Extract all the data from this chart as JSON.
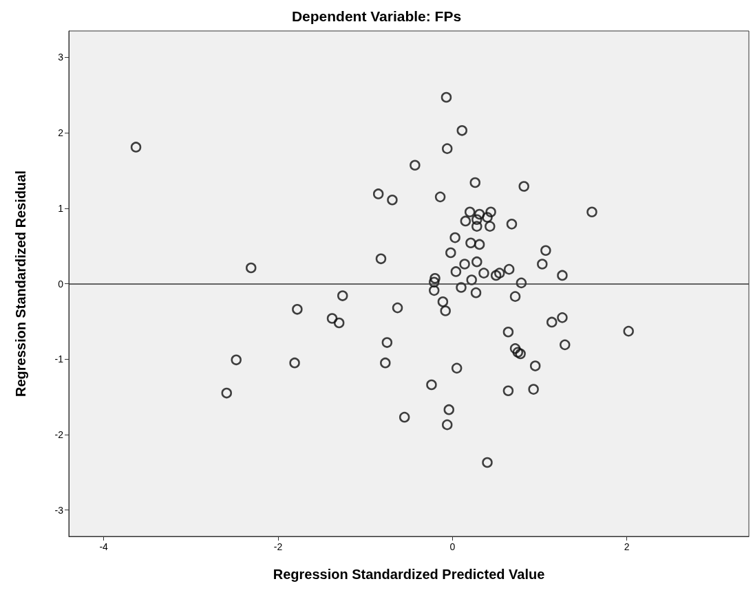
{
  "chart_data": {
    "type": "scatter",
    "title": "Dependent Variable: FPs",
    "xlabel": "Regression Standardized Predicted Value",
    "ylabel": "Regression Standardized Residual",
    "xlim": [
      -4.4,
      3.4
    ],
    "ylim": [
      -3.35,
      3.35
    ],
    "xticks": [
      -4,
      -2,
      0,
      2
    ],
    "yticks": [
      -3,
      -2,
      -1,
      0,
      1,
      2,
      3
    ],
    "marker": "circle",
    "ref_lines": [
      {
        "axis": "y",
        "value": 0,
        "color": "#333333"
      }
    ],
    "series": [
      {
        "color": "#111111",
        "x": [
          -3.63,
          -2.31,
          -1.78,
          -1.81,
          -1.26,
          -1.38,
          -1.3,
          -2.48,
          -2.59,
          -0.85,
          -0.69,
          -0.82,
          -0.43,
          -0.63,
          -0.75,
          -0.77,
          -0.55,
          -0.07,
          0.11,
          -0.06,
          -0.14,
          0.26,
          0.82,
          1.6,
          0.2,
          0.31,
          0.44,
          0.4,
          0.15,
          0.28,
          0.28,
          0.43,
          0.68,
          0.03,
          0.21,
          0.31,
          1.07,
          -0.02,
          1.03,
          0.28,
          0.14,
          0.04,
          0.36,
          0.5,
          0.54,
          0.65,
          1.26,
          -0.2,
          -0.21,
          0.22,
          0.79,
          0.1,
          -0.21,
          0.27,
          0.72,
          -0.11,
          -0.08,
          0.05,
          -0.24,
          -0.04,
          -0.06,
          0.4,
          0.64,
          0.72,
          0.75,
          0.78,
          0.95,
          0.64,
          0.93,
          1.14,
          1.26,
          1.29,
          2.02
        ],
        "values": [
          1.81,
          0.21,
          -0.34,
          -1.05,
          -0.16,
          -0.46,
          -0.52,
          -1.01,
          -1.45,
          1.19,
          1.11,
          0.33,
          1.57,
          -0.32,
          -0.78,
          -1.05,
          -1.77,
          2.47,
          2.03,
          1.79,
          1.15,
          1.34,
          1.29,
          0.95,
          0.95,
          0.92,
          0.95,
          0.88,
          0.83,
          0.85,
          0.76,
          0.76,
          0.79,
          0.61,
          0.54,
          0.52,
          0.44,
          0.41,
          0.26,
          0.29,
          0.26,
          0.16,
          0.14,
          0.11,
          0.14,
          0.19,
          0.11,
          0.07,
          0.02,
          0.05,
          0.01,
          -0.05,
          -0.09,
          -0.12,
          -0.17,
          -0.24,
          -0.36,
          -1.12,
          -1.34,
          -1.67,
          -1.87,
          -2.37,
          -0.64,
          -0.86,
          -0.91,
          -0.93,
          -1.09,
          -1.42,
          -1.4,
          -0.51,
          -0.45,
          -0.81,
          -0.63
        ]
      }
    ]
  }
}
